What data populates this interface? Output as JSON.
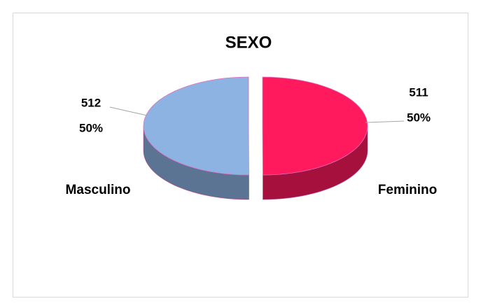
{
  "chart_data": {
    "type": "pie3d",
    "title": "SEXO",
    "categories": [
      "Masculino",
      "Feminino"
    ],
    "values": [
      512,
      511
    ],
    "percent_labels": [
      "50%",
      "50%"
    ],
    "colors": [
      "#8db3e2",
      "#ff1a5e"
    ]
  }
}
